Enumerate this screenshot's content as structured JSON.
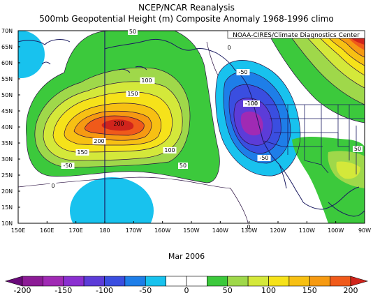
{
  "header": {
    "title": "NCEP/NCAR Reanalysis",
    "subtitle": "500mb Geopotential Height (m) Composite Anomaly 1968-1996 climo"
  },
  "map": {
    "credit": "NOAA-CIRES/Climate Diagnostics Center",
    "region": {
      "lon_west": "150E",
      "lon_east": "90W",
      "lat_south": 10,
      "lat_north": 70
    },
    "lat_ticks": [
      "70N",
      "65N",
      "60N",
      "55N",
      "50N",
      "45N",
      "40N",
      "35N",
      "30N",
      "25N",
      "20N",
      "15N",
      "10N"
    ],
    "lon_ticks": [
      "150E",
      "160E",
      "170E",
      "180",
      "170W",
      "160W",
      "150W",
      "140W",
      "130W",
      "120W",
      "110W",
      "100W",
      "90W"
    ],
    "contour_labels": [
      {
        "text": "50",
        "value": 50
      },
      {
        "text": "100",
        "value": 100
      },
      {
        "text": "150",
        "value": 150
      },
      {
        "text": "200",
        "value": 200
      },
      {
        "text": "150",
        "value": 150
      },
      {
        "text": "100",
        "value": 100
      },
      {
        "text": "-50",
        "value": -50
      },
      {
        "text": "100",
        "value": 100
      },
      {
        "text": "50",
        "value": 50
      },
      {
        "text": "0",
        "value": 0
      },
      {
        "text": "0",
        "value": 0
      },
      {
        "text": "-50",
        "value": -50
      },
      {
        "text": "-100",
        "value": -100
      },
      {
        "text": "-50",
        "value": -50
      },
      {
        "text": "0",
        "value": 0
      },
      {
        "text": "50",
        "value": 50
      }
    ],
    "features": {
      "positive_anomaly_center": {
        "label": "200",
        "lon": "170W",
        "lat": "45N"
      },
      "negative_anomaly_center": {
        "label": "-100",
        "lon": "130W",
        "lat": "43N"
      }
    }
  },
  "footer": {
    "date": "Mar 2006"
  },
  "colorbar": {
    "tick_labels": [
      "-200",
      "-150",
      "-100",
      "-50",
      "0",
      "50",
      "100",
      "150",
      "200"
    ],
    "bins": [
      {
        "range": "< -200",
        "color": "#6a0a7a"
      },
      {
        "range": "-200 to -175",
        "color": "#8c1b96"
      },
      {
        "range": "-175 to -150",
        "color": "#a02ab4"
      },
      {
        "range": "-150 to -125",
        "color": "#8a2fd0"
      },
      {
        "range": "-125 to -100",
        "color": "#5c3cd8"
      },
      {
        "range": "-100 to -75",
        "color": "#3a4ee0"
      },
      {
        "range": "-75 to -50",
        "color": "#1e7ee8"
      },
      {
        "range": "-50 to -25",
        "color": "#18c2ee"
      },
      {
        "range": "-25 to 0",
        "color": "#ffffff"
      },
      {
        "range": "0 to 25",
        "color": "#ffffff"
      },
      {
        "range": "25 to 50",
        "color": "#3cc93c"
      },
      {
        "range": "50 to 75",
        "color": "#9fd84a"
      },
      {
        "range": "75 to 100",
        "color": "#d4e83a"
      },
      {
        "range": "100 to 125",
        "color": "#f6e21a"
      },
      {
        "range": "125 to 150",
        "color": "#f7c013"
      },
      {
        "range": "150 to 175",
        "color": "#f69a12"
      },
      {
        "range": "175 to 200",
        "color": "#f05a1a"
      },
      {
        "range": "> 200",
        "color": "#d0241c"
      }
    ]
  }
}
